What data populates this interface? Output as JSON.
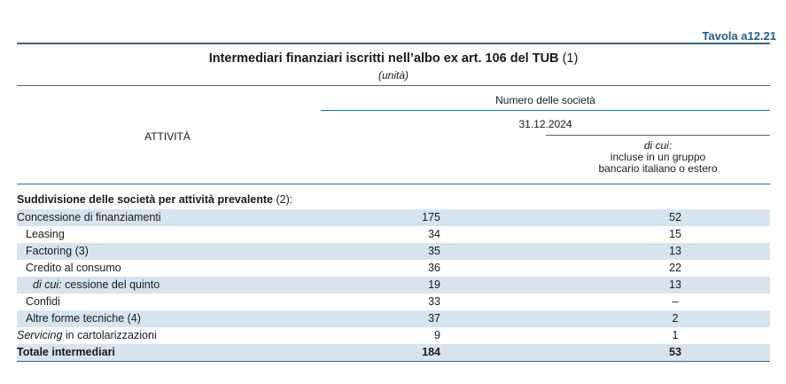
{
  "table_number": "Tavola a12.21",
  "title": "Intermediari finanziari iscritti nell’albo ex art. 106 del TUB",
  "title_note": "(1)",
  "unit": "(unità)",
  "header": {
    "row_label": "ATTIVITÀ",
    "group": "Numero delle società",
    "date": "31.12.2024",
    "sub_italic": "di cui:",
    "sub_line1": "incluse in un gruppo",
    "sub_line2": "bancario italiano o estero"
  },
  "section": {
    "label": "Suddivisione delle società per attività prevalente",
    "note": " (2):"
  },
  "rows": [
    {
      "prefix": "",
      "label": "Concessione di finanziamenti",
      "total": "175",
      "group": "52"
    },
    {
      "prefix": "",
      "label": "Leasing",
      "total": "34",
      "group": "15"
    },
    {
      "prefix": "",
      "label": "Factoring (3)",
      "total": "35",
      "group": "13"
    },
    {
      "prefix": "",
      "label": "Credito al consumo",
      "total": "36",
      "group": "22"
    },
    {
      "prefix": "di cui:",
      "label": " cessione del quinto",
      "total": "19",
      "group": "13"
    },
    {
      "prefix": "",
      "label": "Confidi",
      "total": "33",
      "group": "–"
    },
    {
      "prefix": "",
      "label": "Altre forme tecniche (4)",
      "total": "37",
      "group": "2"
    },
    {
      "prefix": "Servicing",
      "label": " in cartolarizzazioni",
      "total": "9",
      "group": "1"
    },
    {
      "prefix": "",
      "label": "Totale intermediari",
      "total": "184",
      "group": "53"
    }
  ]
}
